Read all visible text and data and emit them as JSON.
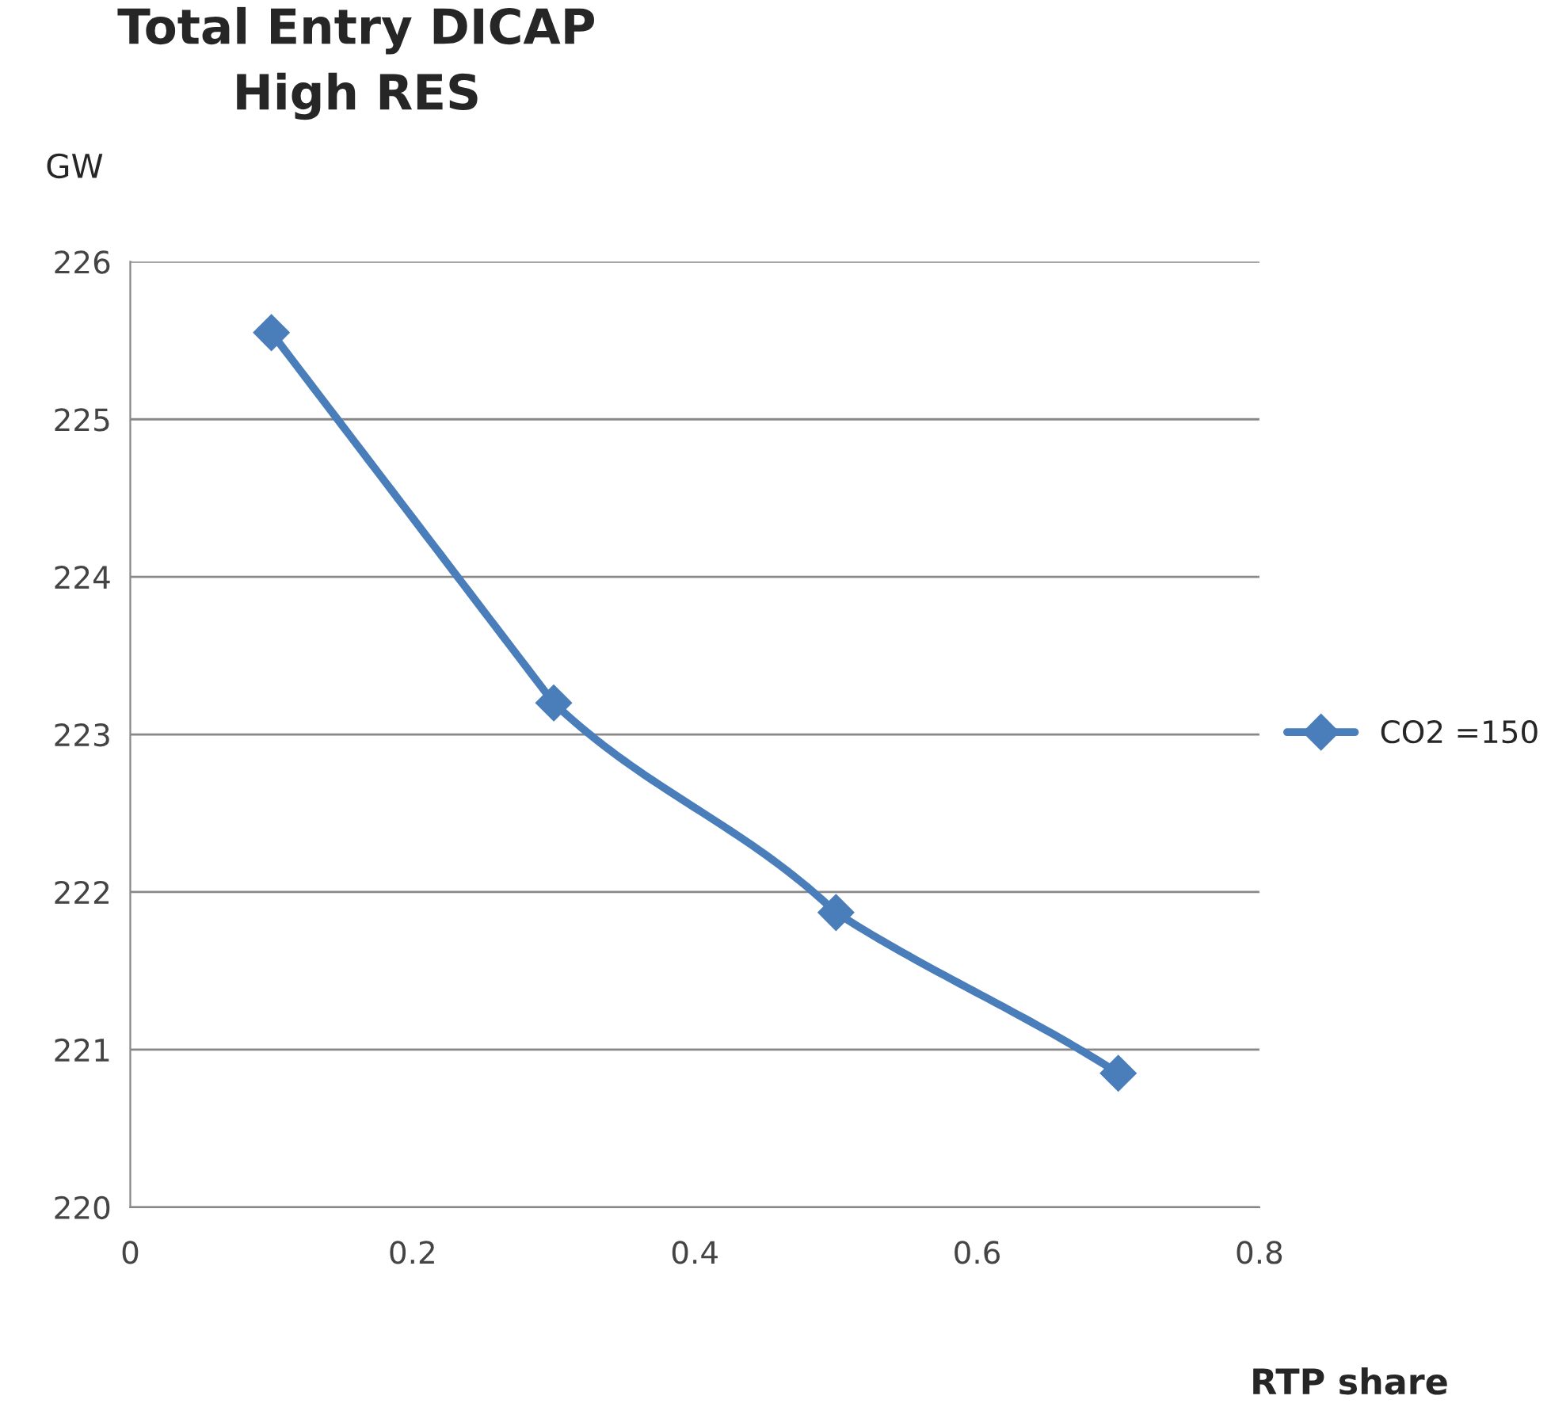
{
  "chart_data": {
    "type": "line",
    "title": "Total Entry DICAP\nHigh RES",
    "ylabel": "GW",
    "xlabel": "RTP share",
    "x": [
      0.1,
      0.3,
      0.5,
      0.7
    ],
    "series": [
      {
        "name": "CO2 =150",
        "color": "#4a7ebb",
        "values": [
          225.55,
          223.2,
          221.87,
          220.85
        ]
      }
    ],
    "xlim": [
      0,
      0.8
    ],
    "xticks": [
      0,
      0.2,
      0.4,
      0.6,
      0.8
    ],
    "ylim": [
      220,
      226
    ],
    "yticks": [
      220,
      221,
      222,
      223,
      224,
      225,
      226
    ],
    "grid": "y",
    "legend": "right",
    "marker": "diamond",
    "line_style": "solid"
  }
}
